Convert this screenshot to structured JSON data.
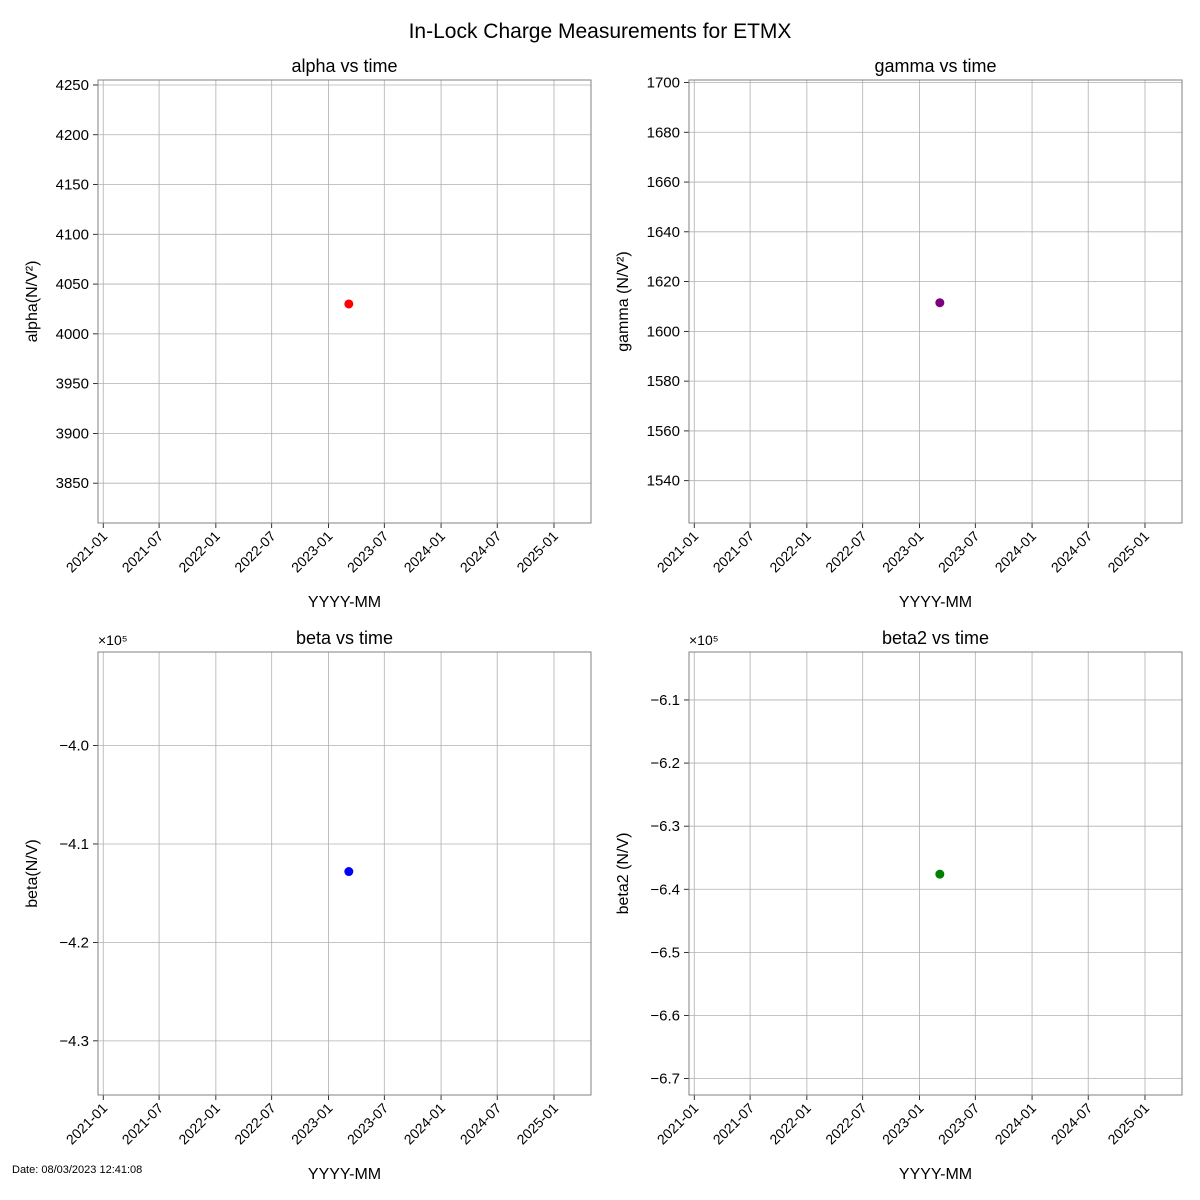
{
  "figure": {
    "suptitle": "In-Lock Charge Measurements for ETMX",
    "footer": "Date: 08/03/2023 12:41:08"
  },
  "chart_data": [
    {
      "type": "scatter",
      "title": "alpha vs time",
      "xlabel": "YYYY-MM",
      "ylabel": "alpha(N/V²)",
      "x_tick_labels": [
        "2021-01",
        "2021-07",
        "2022-01",
        "2022-07",
        "2023-01",
        "2023-07",
        "2024-01",
        "2024-07",
        "2025-01"
      ],
      "xlim": [
        "2020-12-15",
        "2025-05-01"
      ],
      "ylim": [
        3810,
        4255
      ],
      "y_ticks": [
        3850,
        3900,
        3950,
        4000,
        4050,
        4100,
        4150,
        4200,
        4250
      ],
      "y_tick_labels": [
        "3850",
        "3900",
        "3950",
        "4000",
        "4050",
        "4100",
        "4150",
        "4200",
        "4250"
      ],
      "y_scale_label": "",
      "grid": true,
      "series": [
        {
          "x": [
            "2023-03-08"
          ],
          "y": [
            4030
          ],
          "color": "#ff0000"
        }
      ]
    },
    {
      "type": "scatter",
      "title": "gamma vs time",
      "xlabel": "YYYY-MM",
      "ylabel": "gamma (N/V²)",
      "x_tick_labels": [
        "2021-01",
        "2021-07",
        "2022-01",
        "2022-07",
        "2023-01",
        "2023-07",
        "2024-01",
        "2024-07",
        "2025-01"
      ],
      "xlim": [
        "2020-12-15",
        "2025-05-01"
      ],
      "ylim": [
        1523,
        1701
      ],
      "y_ticks": [
        1540,
        1560,
        1580,
        1600,
        1620,
        1640,
        1660,
        1680,
        1700
      ],
      "y_tick_labels": [
        "1540",
        "1560",
        "1580",
        "1600",
        "1620",
        "1640",
        "1660",
        "1680",
        "1700"
      ],
      "y_scale_label": "",
      "grid": true,
      "series": [
        {
          "x": [
            "2023-03-08"
          ],
          "y": [
            1611.5
          ],
          "color": "#800080"
        }
      ]
    },
    {
      "type": "scatter",
      "title": "beta vs time",
      "xlabel": "YYYY-MM",
      "ylabel": "beta(N/V)",
      "x_tick_labels": [
        "2021-01",
        "2021-07",
        "2022-01",
        "2022-07",
        "2023-01",
        "2023-07",
        "2024-01",
        "2024-07",
        "2025-01"
      ],
      "xlim": [
        "2020-12-15",
        "2025-05-01"
      ],
      "ylim": [
        -435500,
        -390500
      ],
      "y_ticks": [
        -430000,
        -420000,
        -410000,
        -400000
      ],
      "y_tick_labels": [
        "−4.3",
        "−4.2",
        "−4.1",
        "−4.0"
      ],
      "y_scale_label": "×10⁵",
      "grid": true,
      "series": [
        {
          "x": [
            "2023-03-08"
          ],
          "y": [
            -412800
          ],
          "color": "#0000ff"
        }
      ]
    },
    {
      "type": "scatter",
      "title": "beta2 vs time",
      "xlabel": "YYYY-MM",
      "ylabel": "beta2 (N/V)",
      "x_tick_labels": [
        "2021-01",
        "2021-07",
        "2022-01",
        "2022-07",
        "2023-01",
        "2023-07",
        "2024-01",
        "2024-07",
        "2025-01"
      ],
      "xlim": [
        "2020-12-15",
        "2025-05-01"
      ],
      "ylim": [
        -672600,
        -602400
      ],
      "y_ticks": [
        -670000,
        -660000,
        -650000,
        -640000,
        -630000,
        -620000,
        -610000
      ],
      "y_tick_labels": [
        "−6.7",
        "−6.6",
        "−6.5",
        "−6.4",
        "−6.3",
        "−6.2",
        "−6.1"
      ],
      "y_scale_label": "×10⁵",
      "grid": true,
      "series": [
        {
          "x": [
            "2023-03-08"
          ],
          "y": [
            -637600
          ],
          "color": "#008000"
        }
      ]
    }
  ]
}
